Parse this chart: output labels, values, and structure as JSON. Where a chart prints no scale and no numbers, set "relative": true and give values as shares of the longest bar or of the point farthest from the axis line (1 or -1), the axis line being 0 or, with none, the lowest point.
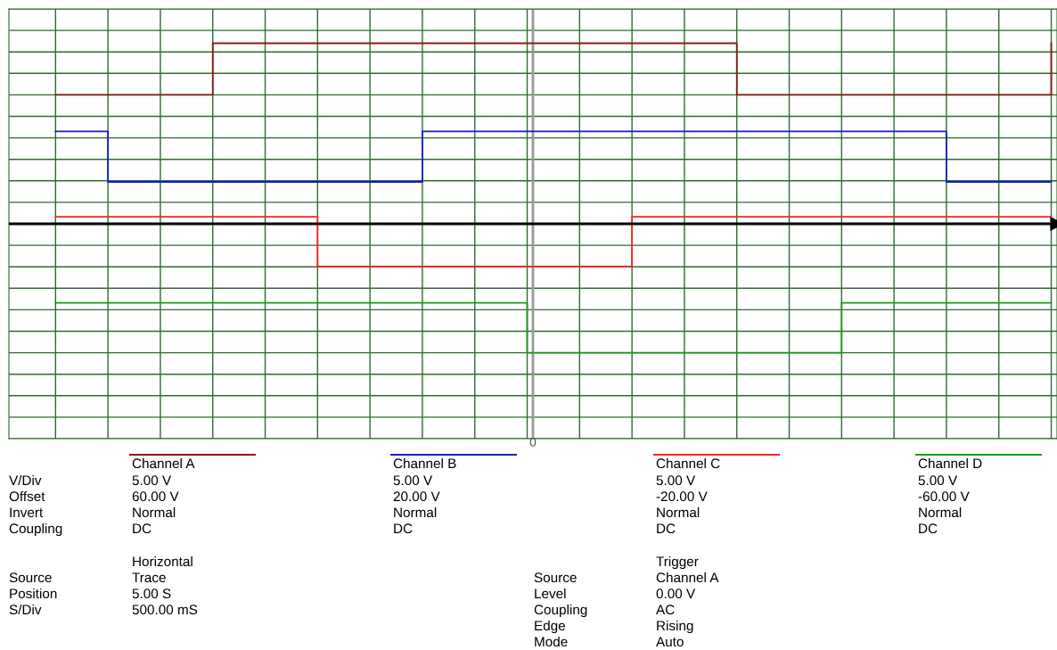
{
  "chart_data": {
    "type": "step",
    "relative": true,
    "grid": true,
    "categories": [
      null,
      null,
      null,
      null,
      null,
      null,
      null,
      null,
      null,
      null,
      null,
      null,
      null,
      null,
      null,
      null,
      null,
      null,
      null,
      null
    ],
    "series": [
      {
        "color": "#8b1a1a",
        "values": [
          0.714,
          0.714,
          0.714,
          1,
          1,
          1,
          1,
          1,
          1,
          1,
          1,
          1,
          1,
          0.714,
          0.714,
          0.714,
          0.714,
          0.714,
          0.714,
          1
        ]
      },
      {
        "color": "#1a1acc",
        "values": [
          0.512,
          0.232,
          0.232,
          0.232,
          0.232,
          0.232,
          0.232,
          0.512,
          0.512,
          0.512,
          0.512,
          0.512,
          0.512,
          0.512,
          0.512,
          0.512,
          0.512,
          0.232,
          0.232,
          0.232
        ]
      },
      {
        "color": "#ff2020",
        "values": [
          0.039,
          0.039,
          0.039,
          0.039,
          0.039,
          -0.236,
          -0.236,
          -0.236,
          -0.236,
          -0.236,
          -0.236,
          0.039,
          0.039,
          0.039,
          0.039,
          0.039,
          0.039,
          0.039,
          0.039,
          0.039
        ]
      },
      {
        "color": "#1a9a1a",
        "values": [
          -0.438,
          -0.438,
          -0.438,
          -0.438,
          -0.438,
          -0.438,
          -0.438,
          -0.438,
          -0.438,
          -0.714,
          -0.714,
          -0.714,
          -0.714,
          -0.714,
          -0.714,
          -0.438,
          -0.438,
          -0.438,
          -0.438,
          -0.438
        ]
      }
    ],
    "annotations": [
      "V/Div",
      "Offset",
      "Invert",
      "Coupling",
      "5.00 V",
      "60.00 V",
      "Normal",
      "DC",
      "5.00 V",
      "20.00 V",
      "Normal",
      "DC",
      "5.00 V",
      "-20.00 V",
      "Normal",
      "DC",
      "5.00 V",
      "-60.00 V",
      "Normal",
      "DC",
      "Horizontal",
      "Source",
      "Position",
      "S/Div",
      "Trace",
      "5.00 S",
      "500.00 mS",
      "Trigger",
      "Source",
      "Level",
      "Coupling",
      "Edge",
      "Mode",
      "Channel A",
      "0.00 V",
      "AC",
      "Rising",
      "Auto",
      "0",
      "Channel A",
      "Channel B",
      "Channel C",
      "Channel D"
    ]
  }
}
